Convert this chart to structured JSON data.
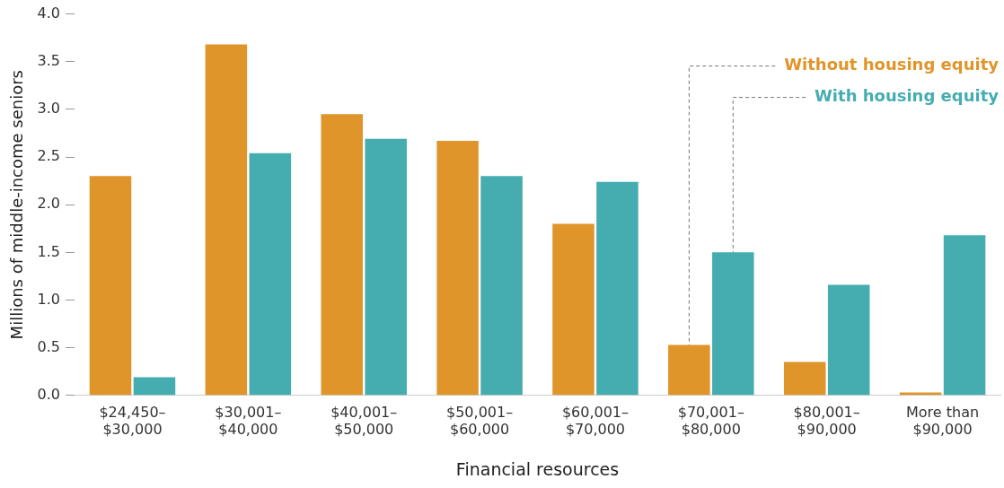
{
  "chart_data": {
    "type": "bar",
    "xlabel": "Financial resources",
    "ylabel": "Millions of middle-income seniors",
    "categories": [
      "$24,450–\n$30,000",
      "$30,001–\n$40,000",
      "$40,001–\n$50,000",
      "$50,001–\n$60,000",
      "$60,001–\n$70,000",
      "$70,001–\n$80,000",
      "$80,001–\n$90,000",
      "More than\n$90,000"
    ],
    "series": [
      {
        "name": "Without housing equity",
        "color": "#e0952a",
        "values": [
          2.3,
          3.68,
          2.95,
          2.67,
          1.8,
          0.53,
          0.35,
          0.03
        ]
      },
      {
        "name": "With housing equity",
        "color": "#45adb0",
        "values": [
          0.19,
          2.54,
          2.69,
          2.3,
          2.24,
          1.5,
          1.16,
          1.68
        ]
      }
    ],
    "ylim": [
      0,
      4
    ],
    "yticks": [
      {
        "value": 0,
        "label": "0.0"
      },
      {
        "value": 0.5,
        "label": "0.5"
      },
      {
        "value": 1,
        "label": "1.0"
      },
      {
        "value": 1.5,
        "label": "1.5"
      },
      {
        "value": 2,
        "label": "2.0"
      },
      {
        "value": 2.5,
        "label": "2.5"
      },
      {
        "value": 3,
        "label": "3.0"
      },
      {
        "value": 3.5,
        "label": "3.5"
      },
      {
        "value": 4,
        "label": "4.0"
      }
    ],
    "grid": false,
    "legend": false
  }
}
